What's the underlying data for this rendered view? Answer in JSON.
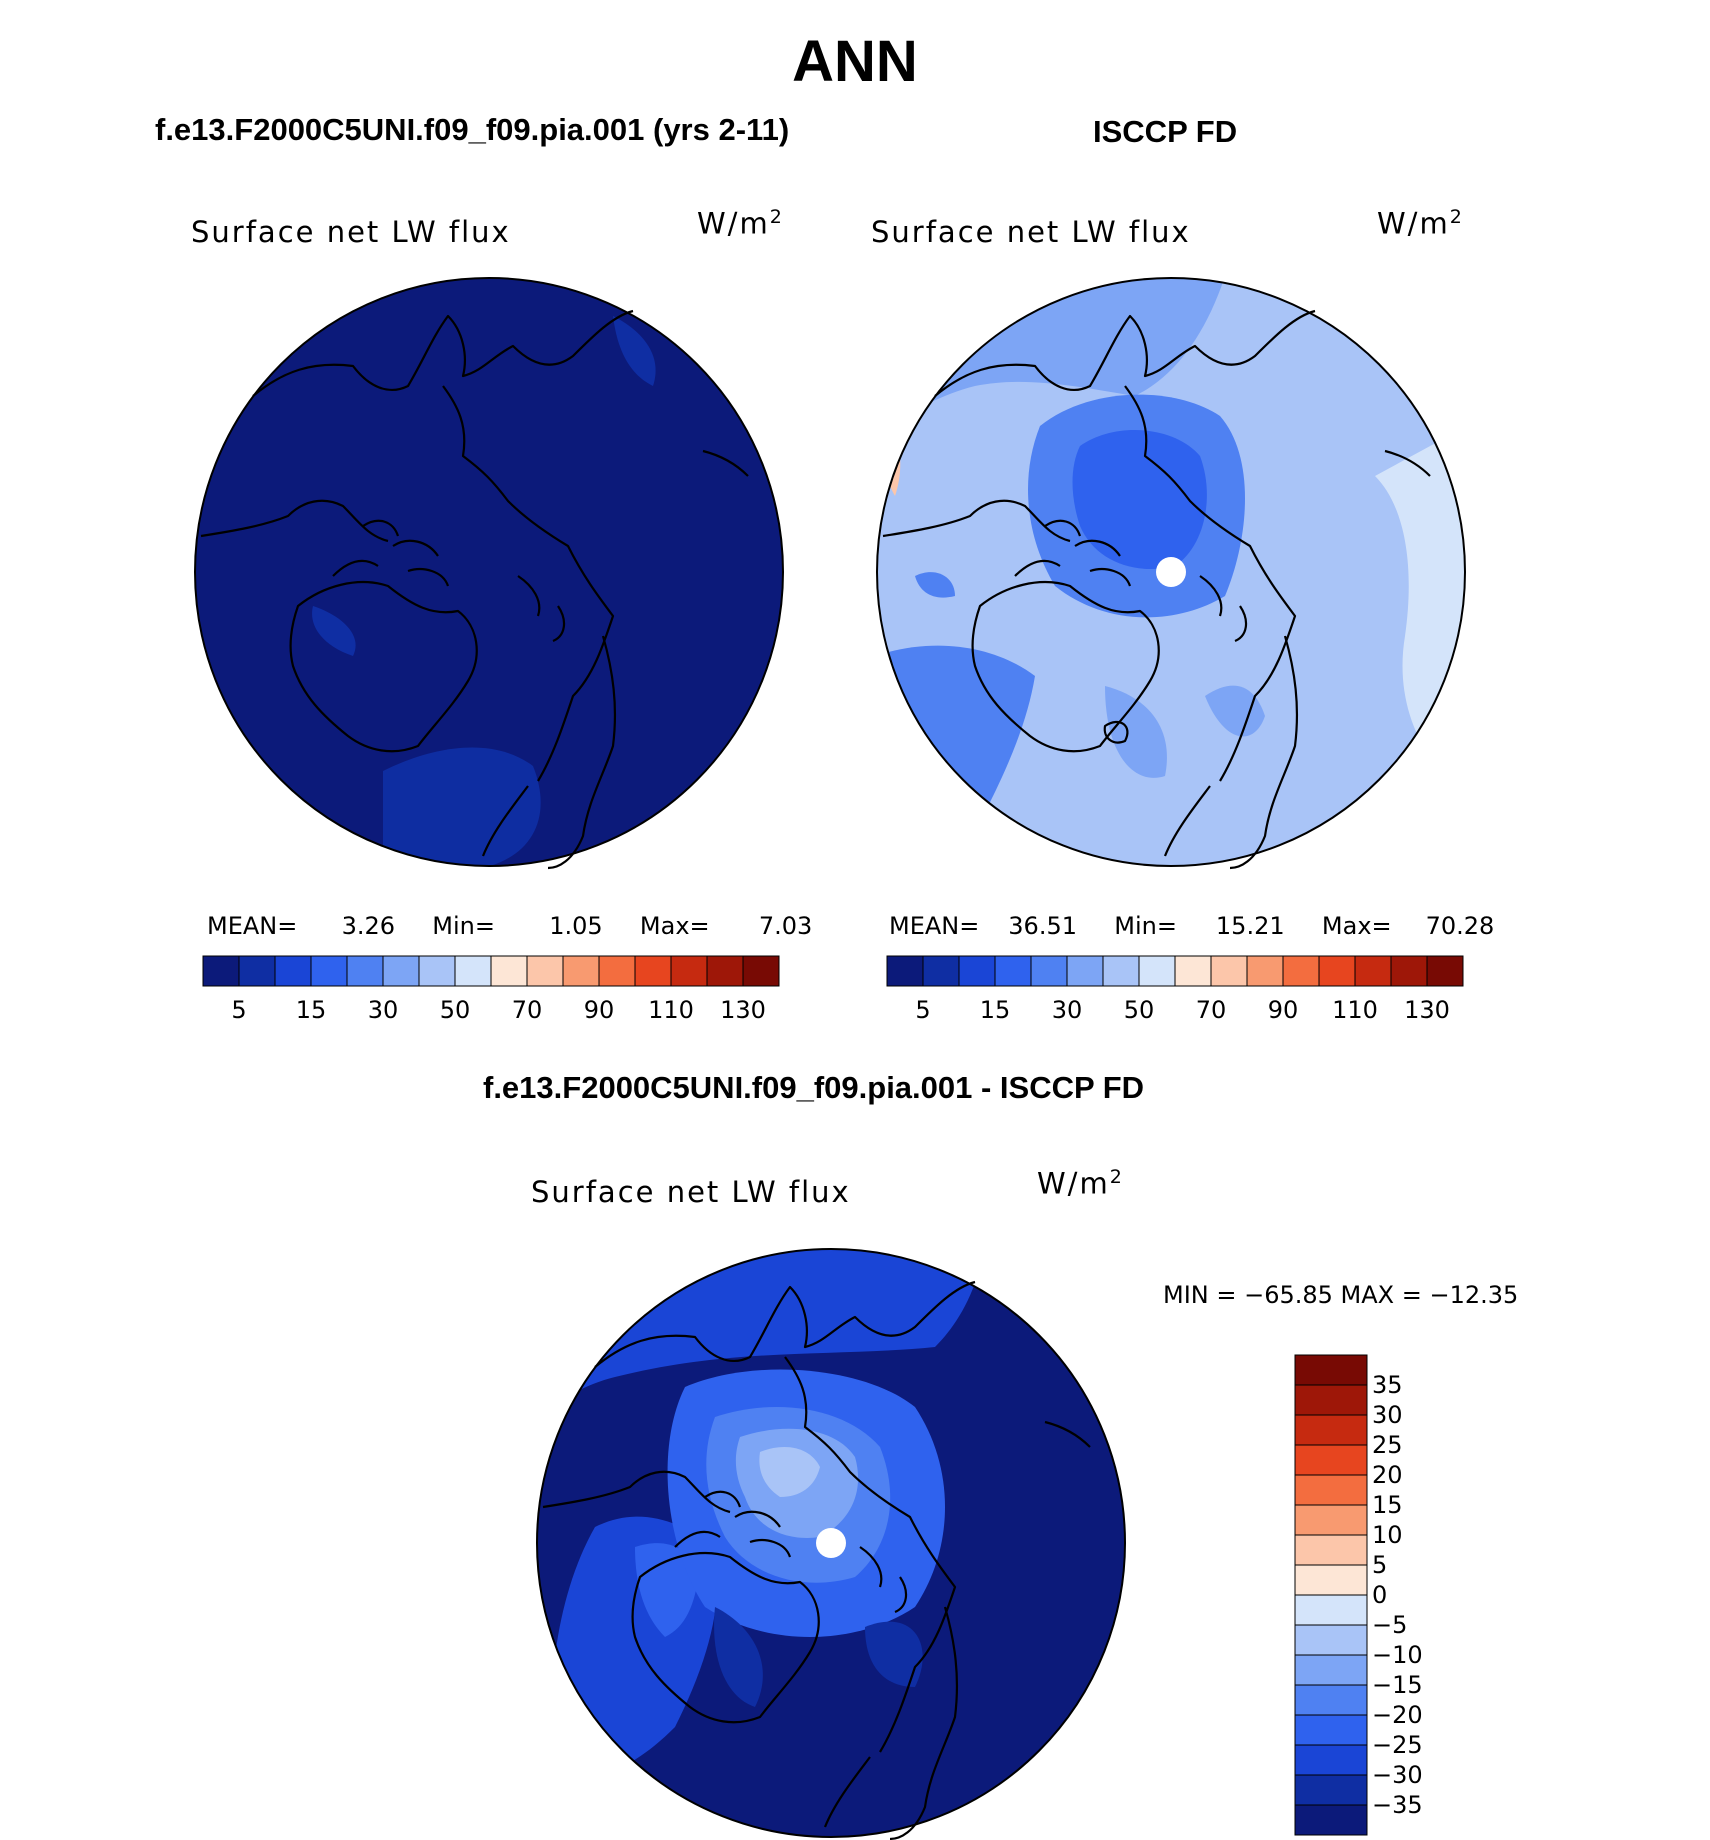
{
  "figure": {
    "title": "ANN",
    "panels": [
      {
        "id": "model",
        "subtitle": "f.e13.F2000C5UNI.f09_f09.pia.001 (yrs 2-11)",
        "variable": "Surface net LW flux",
        "units_base": "W/m",
        "units_exp": "2",
        "mean_label": "MEAN=",
        "mean": "3.26",
        "min_label": "Min=",
        "min": "1.05",
        "max_label": "Max=",
        "max": "7.03"
      },
      {
        "id": "obs",
        "subtitle": "ISCCP FD",
        "variable": "Surface net LW flux",
        "units_base": "W/m",
        "units_exp": "2",
        "mean_label": "MEAN=",
        "mean": "36.51",
        "min_label": "Min=",
        "min": "15.21",
        "max_label": "Max=",
        "max": "70.28"
      },
      {
        "id": "diff",
        "subtitle": "f.e13.F2000C5UNI.f09_f09.pia.001 - ISCCP FD",
        "variable": "Surface net LW flux",
        "units_base": "W/m",
        "units_exp": "2",
        "minmax_text": "MIN = −65.85 MAX = −12.35"
      }
    ],
    "colorbar_abs": {
      "colors": [
        "#0c1a7a",
        "#0f2ea3",
        "#1a45d6",
        "#2f62ee",
        "#4f81f2",
        "#7da5f5",
        "#a9c4f7",
        "#d4e4fa",
        "#fde6d6",
        "#fcc6aa",
        "#f89a70",
        "#f36d3f",
        "#e7451f",
        "#c62a10",
        "#9e1708",
        "#780a04"
      ],
      "tick_labels": [
        "5",
        "15",
        "30",
        "50",
        "70",
        "90",
        "110",
        "130"
      ]
    },
    "colorbar_diff": {
      "colors": [
        "#0c1a7a",
        "#0f2ea3",
        "#1a45d6",
        "#2f62ee",
        "#4f81f2",
        "#7da5f5",
        "#a9c4f7",
        "#d4e4fa",
        "#fde6d6",
        "#fcc6aa",
        "#f89a70",
        "#f36d3f",
        "#e7451f",
        "#c62a10",
        "#9e1708",
        "#780a04"
      ],
      "tick_labels": [
        "35",
        "30",
        "25",
        "20",
        "15",
        "10",
        "5",
        "0",
        "−5",
        "−10",
        "−15",
        "−20",
        "−25",
        "−30",
        "−35"
      ]
    }
  }
}
